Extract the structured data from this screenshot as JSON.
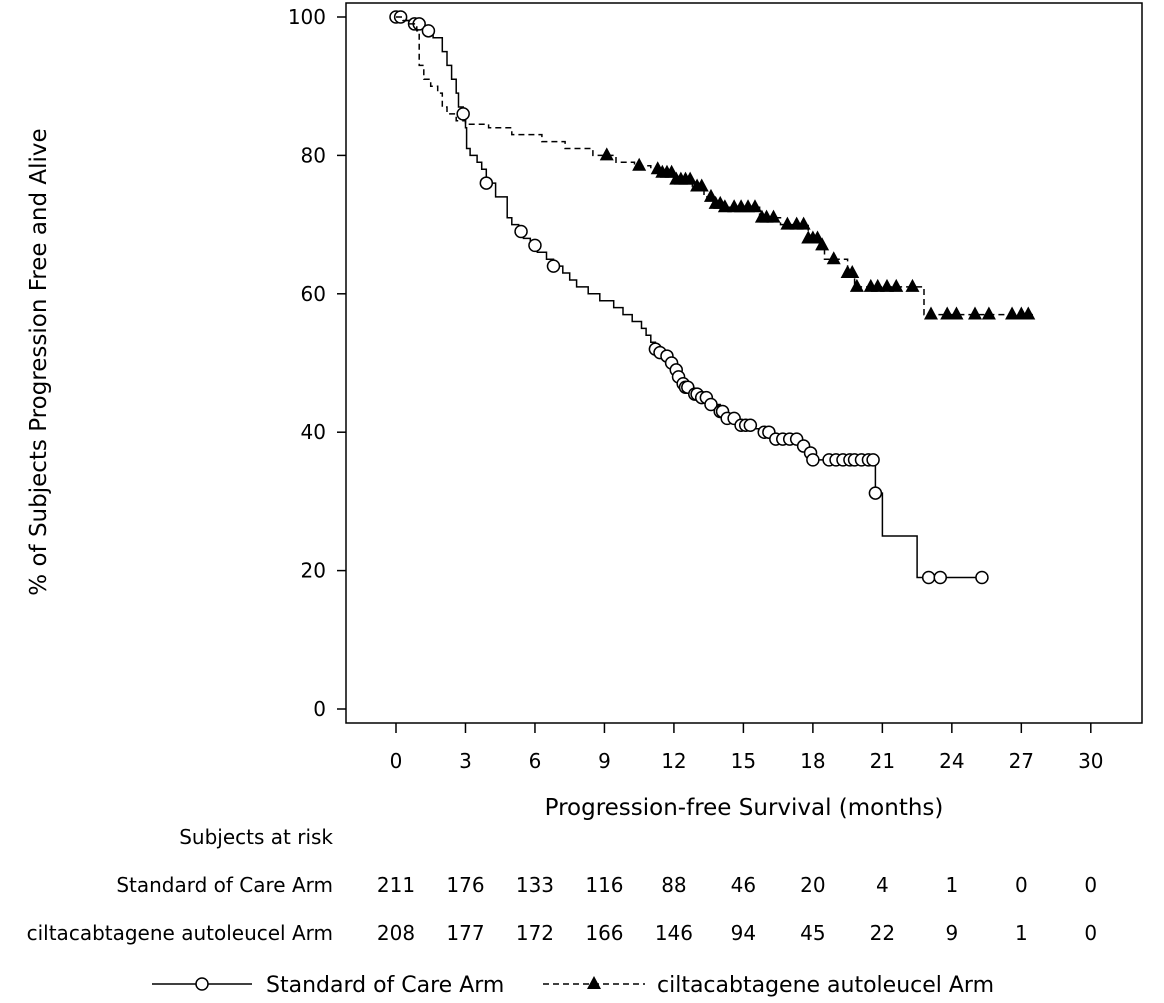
{
  "chart_data": {
    "type": "line",
    "title": "",
    "xlabel": "Progression-free Survival (months)",
    "ylabel": "% of Subjects Progression Free and Alive",
    "xlim": [
      -2,
      32.4
    ],
    "ylim": [
      -2,
      100
    ],
    "xticks": [
      0,
      3,
      6,
      9,
      12,
      15,
      18,
      21,
      24,
      27,
      30
    ],
    "yticks": [
      0,
      20,
      40,
      60,
      80,
      100
    ],
    "grid": false,
    "legend_position": "bottom",
    "series": [
      {
        "name": "Standard of Care Arm",
        "line_style": "solid",
        "marker": "open-circle",
        "color": "#000000",
        "steps": [
          [
            0,
            100
          ],
          [
            0.3,
            99.5
          ],
          [
            0.7,
            99
          ],
          [
            1.2,
            98
          ],
          [
            1.6,
            97
          ],
          [
            2.0,
            95
          ],
          [
            2.2,
            93
          ],
          [
            2.4,
            91
          ],
          [
            2.6,
            89
          ],
          [
            2.7,
            87
          ],
          [
            2.9,
            86
          ],
          [
            3.0,
            84
          ],
          [
            3.05,
            81
          ],
          [
            3.2,
            80
          ],
          [
            3.5,
            79
          ],
          [
            3.7,
            78
          ],
          [
            3.9,
            76
          ],
          [
            4.3,
            74
          ],
          [
            4.8,
            71
          ],
          [
            5.0,
            70
          ],
          [
            5.3,
            69
          ],
          [
            5.5,
            68
          ],
          [
            5.8,
            67
          ],
          [
            6.1,
            66
          ],
          [
            6.5,
            65
          ],
          [
            6.8,
            64
          ],
          [
            7.2,
            63
          ],
          [
            7.5,
            62
          ],
          [
            7.8,
            61
          ],
          [
            8.3,
            60
          ],
          [
            8.8,
            59
          ],
          [
            9.4,
            58
          ],
          [
            9.8,
            57
          ],
          [
            10.2,
            56
          ],
          [
            10.6,
            55
          ],
          [
            10.8,
            54
          ],
          [
            11.0,
            53
          ],
          [
            11.2,
            52
          ],
          [
            11.4,
            51.5
          ],
          [
            11.6,
            51
          ],
          [
            11.9,
            50
          ],
          [
            12.1,
            49
          ],
          [
            12.2,
            48
          ],
          [
            12.3,
            47
          ],
          [
            12.5,
            46.5
          ],
          [
            12.7,
            46
          ],
          [
            12.9,
            45.5
          ],
          [
            13.2,
            45
          ],
          [
            13.6,
            44
          ],
          [
            14.0,
            43
          ],
          [
            14.3,
            42
          ],
          [
            14.8,
            41
          ],
          [
            15.5,
            40.5
          ],
          [
            15.9,
            40
          ],
          [
            16.3,
            39
          ],
          [
            17.4,
            38
          ],
          [
            17.8,
            37
          ],
          [
            18.0,
            36
          ],
          [
            20.7,
            31.2
          ],
          [
            21.0,
            25
          ],
          [
            22.5,
            19
          ],
          [
            25.5,
            19
          ]
        ],
        "censor_x": [
          0,
          0.2,
          0.8,
          1.0,
          1.4,
          2.9,
          3.9,
          5.4,
          6.0,
          6.8,
          11.2,
          11.4,
          11.7,
          11.9,
          12.1,
          12.2,
          12.4,
          12.5,
          12.6,
          12.9,
          13.0,
          13.2,
          13.4,
          13.6,
          14.0,
          14.1,
          14.3,
          14.6,
          14.9,
          15.1,
          15.3,
          15.9,
          16.1,
          16.4,
          16.7,
          17.0,
          17.3,
          17.6,
          17.9,
          18.0,
          18.7,
          19.0,
          19.3,
          19.6,
          19.8,
          20.1,
          20.4,
          20.6,
          20.7,
          23.0,
          23.5,
          25.3
        ]
      },
      {
        "name": "ciltacabtagene autoleucel Arm",
        "line_style": "dashed",
        "marker": "filled-triangle",
        "color": "#000000",
        "steps": [
          [
            0,
            100
          ],
          [
            0.3,
            99.5
          ],
          [
            0.6,
            99
          ],
          [
            0.9,
            98
          ],
          [
            1.0,
            93
          ],
          [
            1.2,
            91
          ],
          [
            1.5,
            90
          ],
          [
            1.8,
            89
          ],
          [
            2.0,
            87
          ],
          [
            2.2,
            86
          ],
          [
            2.6,
            85
          ],
          [
            3.0,
            84.5
          ],
          [
            4.0,
            84
          ],
          [
            5.0,
            83
          ],
          [
            6.3,
            82
          ],
          [
            7.3,
            81
          ],
          [
            8.5,
            80
          ],
          [
            9.5,
            79
          ],
          [
            10.3,
            78.5
          ],
          [
            11.0,
            78
          ],
          [
            11.5,
            77.5
          ],
          [
            12.0,
            76.5
          ],
          [
            12.8,
            75.5
          ],
          [
            13.3,
            74
          ],
          [
            13.8,
            73
          ],
          [
            14.2,
            72.5
          ],
          [
            15.7,
            71
          ],
          [
            16.6,
            70
          ],
          [
            17.8,
            68
          ],
          [
            18.3,
            67
          ],
          [
            18.5,
            65
          ],
          [
            19.5,
            63
          ],
          [
            19.8,
            61
          ],
          [
            22.8,
            57
          ],
          [
            27.5,
            57
          ]
        ],
        "censor_x": [
          9.1,
          10.5,
          11.3,
          11.5,
          11.7,
          11.9,
          12.1,
          12.3,
          12.5,
          12.7,
          13.0,
          13.2,
          13.6,
          13.8,
          14.0,
          14.2,
          14.6,
          14.9,
          15.2,
          15.5,
          15.8,
          16.0,
          16.3,
          16.9,
          17.3,
          17.6,
          17.8,
          18.0,
          18.2,
          18.4,
          18.9,
          19.5,
          19.7,
          19.9,
          20.5,
          20.8,
          21.2,
          21.6,
          22.3,
          23.1,
          23.8,
          24.2,
          25.0,
          25.6,
          26.6,
          27.0,
          27.3
        ]
      }
    ]
  },
  "risk_table": {
    "header": "Subjects at risk",
    "times": [
      0,
      3,
      6,
      9,
      12,
      15,
      18,
      21,
      24,
      27,
      30
    ],
    "rows": [
      {
        "label": "Standard of Care Arm",
        "values": [
          "211",
          "176",
          "133",
          "116",
          "88",
          "46",
          "20",
          "4",
          "1",
          "0",
          "0"
        ]
      },
      {
        "label": "ciltacabtagene autoleucel Arm",
        "values": [
          "208",
          "177",
          "172",
          "166",
          "146",
          "94",
          "45",
          "22",
          "9",
          "1",
          "0"
        ]
      }
    ]
  },
  "legend": {
    "items": [
      {
        "label": "Standard of Care Arm"
      },
      {
        "label": "ciltacabtagene autoleucel Arm"
      }
    ]
  }
}
